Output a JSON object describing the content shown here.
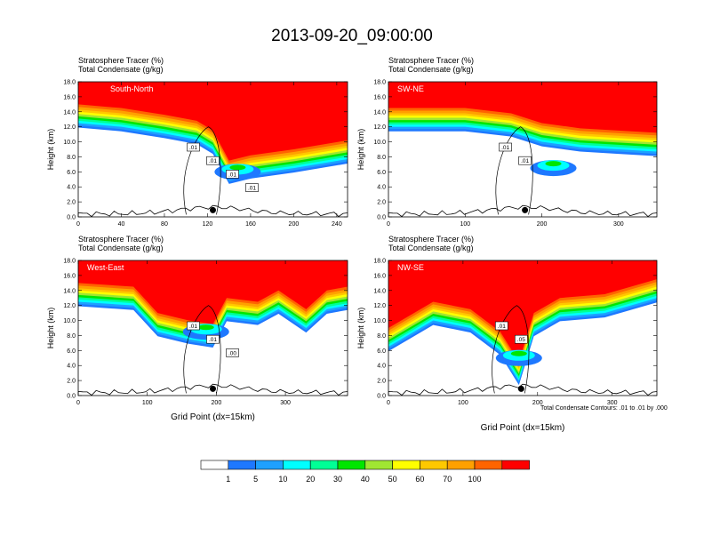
{
  "title": "2013-09-20_09:00:00",
  "chart_data": [
    {
      "type": "heatmap",
      "name": "South-North",
      "subtitle_1": "Stratosphere Tracer   (%)",
      "subtitle_2": "Total Condensate   (g/kg)",
      "ylabel": "Height (km)",
      "xlabel": "",
      "xlim": [
        0,
        250
      ],
      "ylim": [
        0,
        18
      ],
      "xticks": [
        "0",
        "40",
        "80",
        "120",
        "160",
        "200",
        "240"
      ],
      "xtick_values": [
        0,
        40,
        80,
        120,
        160,
        200,
        240
      ],
      "yticks": [
        "0.0",
        "2.0",
        "4.0",
        "6.0",
        "8.0",
        "10.0",
        "12.0",
        "14.0",
        "16.0",
        "18.0"
      ],
      "tropopause_km": [
        [
          0,
          15.0
        ],
        [
          40,
          14.5
        ],
        [
          80,
          13.6
        ],
        [
          110,
          12.8
        ],
        [
          125,
          11.5
        ],
        [
          140,
          7.5
        ],
        [
          160,
          8.2
        ],
        [
          200,
          9.0
        ],
        [
          250,
          10.2
        ]
      ],
      "deep_intrusion": {
        "x": 148,
        "y": 6.0
      },
      "marker_x": 125,
      "contour_labels": [
        ".01",
        ".01",
        ".01",
        ".01"
      ]
    },
    {
      "type": "heatmap",
      "name": "SW-NE",
      "subtitle_1": "Stratosphere Tracer   (%)",
      "subtitle_2": "Total Condensate   (g/kg)",
      "ylabel": "Height (km)",
      "xlabel": "",
      "xlim": [
        0,
        350
      ],
      "ylim": [
        0,
        18
      ],
      "xticks": [
        "0",
        "100",
        "200",
        "300"
      ],
      "xtick_values": [
        0,
        100,
        200,
        300
      ],
      "yticks": [
        "0.0",
        "2.0",
        "4.0",
        "6.0",
        "8.0",
        "10.0",
        "12.0",
        "14.0",
        "16.0",
        "18.0"
      ],
      "tropopause_km": [
        [
          0,
          14.5
        ],
        [
          100,
          14.5
        ],
        [
          160,
          13.8
        ],
        [
          200,
          12.5
        ],
        [
          250,
          11.8
        ],
        [
          300,
          11.5
        ],
        [
          350,
          11.2
        ]
      ],
      "deep_intrusion": {
        "x": 215,
        "y": 6.5
      },
      "marker_x": 178,
      "contour_labels": [
        ".01",
        ".01"
      ]
    },
    {
      "type": "heatmap",
      "name": "West-East",
      "subtitle_1": "Stratosphere Tracer   (%)",
      "subtitle_2": "Total Condensate   (g/kg)",
      "ylabel": "Height (km)",
      "xlabel": "Grid Point (dx=15km)",
      "xlim": [
        0,
        390
      ],
      "ylim": [
        0,
        18
      ],
      "xticks": [
        "0",
        "100",
        "200",
        "300"
      ],
      "xtick_values": [
        0,
        100,
        200,
        300
      ],
      "yticks": [
        "0.0",
        "2.0",
        "4.0",
        "6.0",
        "8.0",
        "10.0",
        "12.0",
        "14.0",
        "16.0",
        "18.0"
      ],
      "tropopause_km": [
        [
          0,
          15.0
        ],
        [
          80,
          14.5
        ],
        [
          115,
          11.0
        ],
        [
          160,
          10.0
        ],
        [
          195,
          9.5
        ],
        [
          215,
          13.0
        ],
        [
          260,
          12.5
        ],
        [
          290,
          14.0
        ],
        [
          330,
          11.5
        ],
        [
          360,
          14.0
        ],
        [
          390,
          14.5
        ]
      ],
      "deep_intrusion": {
        "x": 185,
        "y": 8.5
      },
      "marker_x": 195,
      "contour_labels": [
        ".01",
        ".01",
        ".00"
      ]
    },
    {
      "type": "heatmap",
      "name": "NW-SE",
      "subtitle_1": "Stratosphere Tracer   (%)",
      "subtitle_2": "Total Condensate   (g/kg)",
      "ylabel": "Height (km)",
      "xlabel": "Grid Point (dx=15km)",
      "xlim": [
        0,
        360
      ],
      "ylim": [
        0,
        18
      ],
      "xticks": [
        "0",
        "100",
        "200",
        "300"
      ],
      "xtick_values": [
        0,
        100,
        200,
        300
      ],
      "yticks": [
        "0.0",
        "2.0",
        "4.0",
        "6.0",
        "8.0",
        "10.0",
        "12.0",
        "14.0",
        "16.0",
        "18.0"
      ],
      "tropopause_km": [
        [
          0,
          9.0
        ],
        [
          60,
          12.5
        ],
        [
          110,
          11.5
        ],
        [
          150,
          8.5
        ],
        [
          175,
          4.5
        ],
        [
          195,
          11.0
        ],
        [
          230,
          13.0
        ],
        [
          290,
          13.5
        ],
        [
          360,
          15.5
        ]
      ],
      "deep_intrusion": {
        "x": 175,
        "y": 5.0
      },
      "marker_x": 178,
      "contour_labels": [
        ".01",
        ".05"
      ]
    }
  ],
  "contour_note": "Total Condensate Contours: .01 to .01 by .000",
  "colorbar": {
    "labels": [
      "1",
      "5",
      "10",
      "20",
      "30",
      "40",
      "50",
      "60",
      "70",
      "100"
    ],
    "colors": [
      "#ffffff",
      "#1e78ff",
      "#1ea0ff",
      "#00ffff",
      "#00ff96",
      "#00e600",
      "#a0e632",
      "#ffff00",
      "#ffc800",
      "#ffa000",
      "#ff6400",
      "#ff0000"
    ]
  }
}
